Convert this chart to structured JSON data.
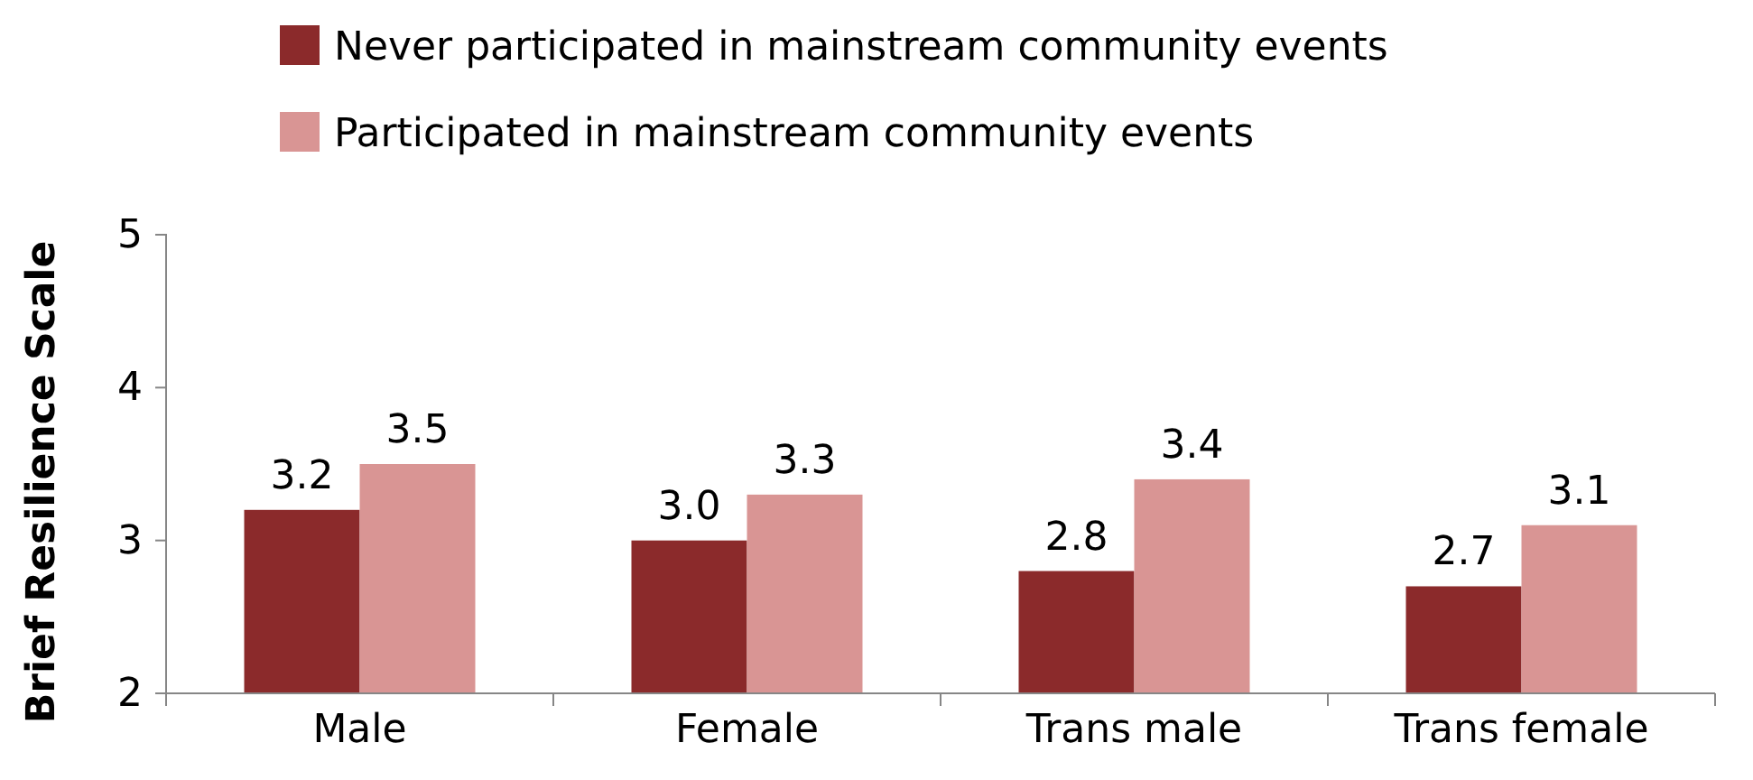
{
  "chart_data": {
    "type": "bar",
    "ylabel": "Brief Resilience Scale",
    "categories": [
      "Male",
      "Female",
      "Trans male",
      "Trans female"
    ],
    "series": [
      {
        "name": "Never participated in mainstream community events",
        "color": "#8b2a2b",
        "values": [
          3.2,
          3.0,
          2.8,
          2.7
        ],
        "value_labels": [
          "3.2",
          "3.0",
          "2.8",
          "2.7"
        ]
      },
      {
        "name": "Participated in mainstream community events",
        "color": "#d99594",
        "values": [
          3.5,
          3.3,
          3.4,
          3.1
        ],
        "value_labels": [
          "3.5",
          "3.3",
          "3.4",
          "3.1"
        ]
      }
    ],
    "ylim": [
      2,
      5
    ],
    "yticks": [
      2,
      3,
      4,
      5
    ],
    "grid": false,
    "legend": "top"
  }
}
